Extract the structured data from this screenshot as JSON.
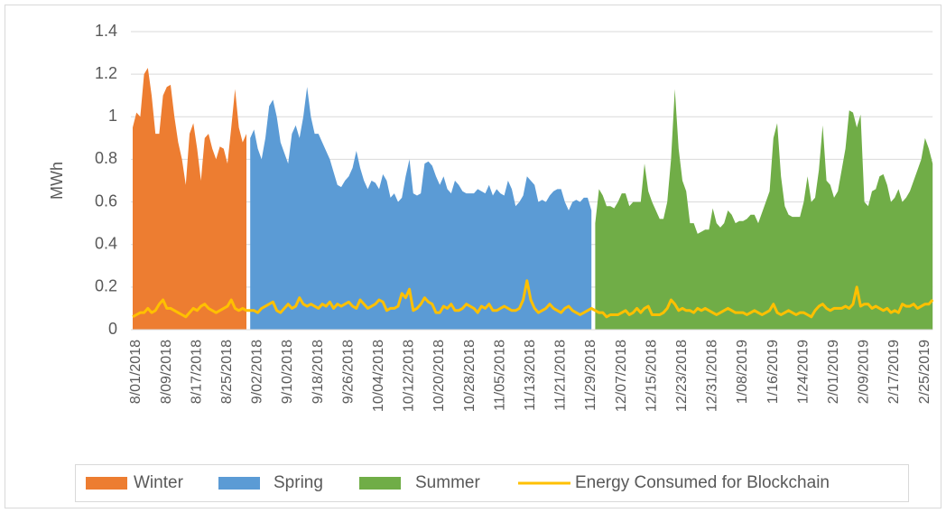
{
  "chart_data": {
    "type": "area",
    "ylabel": "MWh",
    "legend": "bottom",
    "grid": true,
    "ylim": [
      0,
      1.4
    ],
    "yticks": [
      0,
      0.2,
      0.4,
      0.6,
      0.8,
      1,
      1.2,
      1.4
    ],
    "categories": [
      "8/01/2018",
      null,
      null,
      null,
      null,
      null,
      null,
      null,
      "8/09/2018",
      null,
      null,
      null,
      null,
      null,
      null,
      null,
      "8/17/2018",
      null,
      null,
      null,
      null,
      null,
      null,
      null,
      "8/25/2018",
      null,
      null,
      null,
      null,
      null,
      null,
      null,
      "9/02/2018",
      null,
      null,
      null,
      null,
      null,
      null,
      null,
      "9/10/2018",
      null,
      null,
      null,
      null,
      null,
      null,
      null,
      "9/18/2018",
      null,
      null,
      null,
      null,
      null,
      null,
      null,
      "9/26/2018",
      null,
      null,
      null,
      null,
      null,
      null,
      null,
      "10/04/2018",
      null,
      null,
      null,
      null,
      null,
      null,
      null,
      "10/12/2018",
      null,
      null,
      null,
      null,
      null,
      null,
      null,
      "10/20/2018",
      null,
      null,
      null,
      null,
      null,
      null,
      null,
      "10/28/2018",
      null,
      null,
      null,
      null,
      null,
      null,
      null,
      "11/05/2018",
      null,
      null,
      null,
      null,
      null,
      null,
      null,
      "11/13/2018",
      null,
      null,
      null,
      null,
      null,
      null,
      null,
      "11/21/2018",
      null,
      null,
      null,
      null,
      null,
      null,
      null,
      "11/29/2018",
      null,
      null,
      null,
      null,
      null,
      null,
      null,
      "12/07/2018",
      null,
      null,
      null,
      null,
      null,
      null,
      null,
      "12/15/2018",
      null,
      null,
      null,
      null,
      null,
      null,
      null,
      "12/23/2018",
      null,
      null,
      null,
      null,
      null,
      null,
      null,
      "12/31/2018",
      null,
      null,
      null,
      null,
      null,
      null,
      null,
      "1/08/2019",
      null,
      null,
      null,
      null,
      null,
      null,
      null,
      "1/16/2019",
      null,
      null,
      null,
      null,
      null,
      null,
      null,
      "1/24/2019",
      null,
      null,
      null,
      null,
      null,
      null,
      null,
      "2/01/2019",
      null,
      null,
      null,
      null,
      null,
      null,
      null,
      "2/09/2019",
      null,
      null,
      null,
      null,
      null,
      null,
      null,
      "2/17/2019",
      null,
      null,
      null,
      null,
      null,
      null,
      null,
      "2/25/2019",
      null,
      null,
      null
    ],
    "series": [
      {
        "name": "Winter",
        "color": "#ed7d31",
        "kind": "area",
        "values": [
          0.95,
          1.02,
          1.0,
          1.2,
          1.23,
          1.1,
          0.92,
          0.92,
          1.1,
          1.14,
          1.15,
          1.0,
          0.88,
          0.8,
          0.68,
          0.92,
          0.97,
          0.85,
          0.7,
          0.9,
          0.92,
          0.85,
          0.8,
          0.86,
          0.85,
          0.78,
          0.95,
          1.13,
          0.95,
          0.88,
          0.92,
          null,
          null,
          null,
          null,
          null,
          null,
          null,
          null,
          null,
          null,
          null,
          null,
          null,
          null,
          null,
          null,
          null,
          null,
          null,
          null,
          null,
          null,
          null,
          null,
          null,
          null,
          null,
          null,
          null,
          null,
          null,
          null,
          null,
          null,
          null,
          null,
          null,
          null,
          null,
          null,
          null,
          null,
          null,
          null,
          null,
          null,
          null,
          null,
          null,
          null,
          null,
          null,
          null,
          null,
          null,
          null,
          null,
          null,
          null,
          null,
          null,
          null,
          null,
          null,
          null,
          null,
          null,
          null,
          null,
          null,
          null,
          null,
          null,
          null,
          null,
          null,
          null,
          null,
          null,
          null,
          null,
          null,
          null,
          null,
          null,
          null,
          null,
          null,
          null,
          null,
          null,
          null,
          null,
          null,
          null,
          null,
          null,
          null,
          null,
          null,
          null,
          null,
          null,
          null,
          null,
          null,
          null,
          null,
          null,
          null,
          null,
          null,
          null,
          null,
          null,
          null,
          null,
          null,
          null,
          null,
          null,
          null,
          null,
          null,
          null,
          null,
          null,
          null,
          null,
          null,
          null,
          null,
          null,
          null,
          null,
          null,
          null,
          null,
          null,
          null,
          null,
          null,
          null,
          null,
          null,
          null,
          null,
          null,
          null,
          null,
          null,
          null,
          null,
          null,
          null,
          null,
          null,
          null,
          null,
          null,
          null,
          null,
          null,
          null,
          null,
          null,
          null,
          null,
          null,
          null,
          null,
          null,
          null,
          null,
          null,
          null,
          null,
          null,
          null,
          null,
          null
        ]
      },
      {
        "name": "Spring",
        "color": "#5b9bd5",
        "kind": "area",
        "values": [
          null,
          null,
          null,
          null,
          null,
          null,
          null,
          null,
          null,
          null,
          null,
          null,
          null,
          null,
          null,
          null,
          null,
          null,
          null,
          null,
          null,
          null,
          null,
          null,
          null,
          null,
          null,
          null,
          null,
          null,
          null,
          0.9,
          0.94,
          0.85,
          0.8,
          0.9,
          1.05,
          1.08,
          1.0,
          0.88,
          0.83,
          0.78,
          0.92,
          0.96,
          0.9,
          1.0,
          1.14,
          1.0,
          0.92,
          0.92,
          0.88,
          0.84,
          0.8,
          0.74,
          0.68,
          0.67,
          0.7,
          0.72,
          0.76,
          0.84,
          0.76,
          0.7,
          0.66,
          0.7,
          0.69,
          0.66,
          0.73,
          0.7,
          0.62,
          0.64,
          0.6,
          0.62,
          0.72,
          0.8,
          0.64,
          0.63,
          0.64,
          0.78,
          0.79,
          0.77,
          0.72,
          0.68,
          0.72,
          0.66,
          0.64,
          0.7,
          0.68,
          0.65,
          0.64,
          0.64,
          0.64,
          0.66,
          0.65,
          0.64,
          0.68,
          0.63,
          0.66,
          0.64,
          0.63,
          0.7,
          0.66,
          0.58,
          0.6,
          0.63,
          0.72,
          0.7,
          0.68,
          0.6,
          0.61,
          0.6,
          0.63,
          0.65,
          0.66,
          0.66,
          0.6,
          0.56,
          0.6,
          0.61,
          0.6,
          0.62,
          0.62,
          0.56,
          null,
          null,
          null,
          null,
          null,
          null,
          null,
          null,
          null,
          null,
          null,
          null,
          null,
          null,
          null,
          null,
          null,
          null,
          null,
          null,
          null,
          null,
          null,
          null,
          null,
          null,
          null,
          null,
          null,
          null,
          null,
          null,
          null,
          null,
          null,
          null,
          null,
          null,
          null,
          null,
          null,
          null,
          null,
          null,
          null,
          null,
          null,
          null,
          null,
          null,
          null,
          null,
          null,
          null,
          null,
          null,
          null,
          null,
          null,
          null,
          null,
          null,
          null,
          null,
          null,
          null,
          null,
          null,
          null,
          null,
          null,
          null,
          null,
          null,
          null,
          null,
          null,
          null,
          null,
          null,
          null,
          null,
          null,
          null,
          null,
          null,
          null,
          null,
          null,
          null
        ]
      },
      {
        "name": "Summer",
        "color": "#70ad47",
        "kind": "area",
        "values": [
          null,
          null,
          null,
          null,
          null,
          null,
          null,
          null,
          null,
          null,
          null,
          null,
          null,
          null,
          null,
          null,
          null,
          null,
          null,
          null,
          null,
          null,
          null,
          null,
          null,
          null,
          null,
          null,
          null,
          null,
          null,
          null,
          null,
          null,
          null,
          null,
          null,
          null,
          null,
          null,
          null,
          null,
          null,
          null,
          null,
          null,
          null,
          null,
          null,
          null,
          null,
          null,
          null,
          null,
          null,
          null,
          null,
          null,
          null,
          null,
          null,
          null,
          null,
          null,
          null,
          null,
          null,
          null,
          null,
          null,
          null,
          null,
          null,
          null,
          null,
          null,
          null,
          null,
          null,
          null,
          null,
          null,
          null,
          null,
          null,
          null,
          null,
          null,
          null,
          null,
          null,
          null,
          null,
          null,
          null,
          null,
          null,
          null,
          null,
          null,
          null,
          null,
          null,
          null,
          null,
          null,
          null,
          null,
          null,
          null,
          null,
          null,
          null,
          null,
          null,
          null,
          null,
          null,
          null,
          null,
          null,
          null,
          0.5,
          0.66,
          0.63,
          0.58,
          0.58,
          0.57,
          0.6,
          0.64,
          0.64,
          0.58,
          0.6,
          0.6,
          0.6,
          0.78,
          0.65,
          0.6,
          0.56,
          0.52,
          0.52,
          0.6,
          0.8,
          1.13,
          0.85,
          0.7,
          0.65,
          0.5,
          0.5,
          0.45,
          0.46,
          0.47,
          0.47,
          0.57,
          0.5,
          0.48,
          0.5,
          0.56,
          0.54,
          0.5,
          0.51,
          0.51,
          0.52,
          0.54,
          0.54,
          0.5,
          0.55,
          0.6,
          0.65,
          0.9,
          0.97,
          0.72,
          0.58,
          0.54,
          0.53,
          0.53,
          0.53,
          0.6,
          0.72,
          0.6,
          0.62,
          0.75,
          0.96,
          0.7,
          0.68,
          0.62,
          0.65,
          0.75,
          0.85,
          1.03,
          1.02,
          0.95,
          1.01,
          0.6,
          0.58,
          0.65,
          0.66,
          0.72,
          0.73,
          0.68,
          0.6,
          0.62,
          0.66,
          0.6,
          0.62,
          0.65,
          0.7,
          0.75,
          0.8,
          0.9,
          0.85,
          0.78
        ]
      },
      {
        "name": "Energy Consumed for Blockchain",
        "color": "#ffc000",
        "kind": "line",
        "values": [
          0.06,
          0.07,
          0.08,
          0.08,
          0.1,
          0.08,
          0.09,
          0.12,
          0.14,
          0.1,
          0.1,
          0.09,
          0.08,
          0.07,
          0.06,
          0.08,
          0.1,
          0.09,
          0.11,
          0.12,
          0.1,
          0.09,
          0.08,
          0.09,
          0.1,
          0.11,
          0.14,
          0.1,
          0.09,
          0.1,
          0.09,
          0.09,
          0.09,
          0.08,
          0.1,
          0.11,
          0.12,
          0.13,
          0.09,
          0.08,
          0.1,
          0.12,
          0.1,
          0.11,
          0.15,
          0.12,
          0.11,
          0.12,
          0.11,
          0.1,
          0.12,
          0.11,
          0.13,
          0.1,
          0.12,
          0.11,
          0.12,
          0.13,
          0.11,
          0.1,
          0.14,
          0.12,
          0.1,
          0.11,
          0.12,
          0.14,
          0.13,
          0.09,
          0.1,
          0.1,
          0.11,
          0.17,
          0.15,
          0.19,
          0.09,
          0.1,
          0.12,
          0.15,
          0.13,
          0.12,
          0.08,
          0.08,
          0.11,
          0.1,
          0.12,
          0.09,
          0.09,
          0.1,
          0.12,
          0.11,
          0.1,
          0.08,
          0.11,
          0.1,
          0.12,
          0.09,
          0.09,
          0.1,
          0.11,
          0.1,
          0.09,
          0.09,
          0.1,
          0.14,
          0.23,
          0.14,
          0.1,
          0.08,
          0.09,
          0.1,
          0.12,
          0.1,
          0.09,
          0.08,
          0.1,
          0.11,
          0.09,
          0.08,
          0.07,
          0.08,
          0.09,
          0.1,
          0.09,
          0.08,
          0.08,
          0.06,
          0.07,
          0.07,
          0.07,
          0.08,
          0.09,
          0.07,
          0.08,
          0.1,
          0.08,
          0.1,
          0.11,
          0.07,
          0.07,
          0.07,
          0.08,
          0.1,
          0.14,
          0.12,
          0.09,
          0.1,
          0.09,
          0.09,
          0.08,
          0.1,
          0.09,
          0.1,
          0.09,
          0.08,
          0.07,
          0.08,
          0.09,
          0.1,
          0.09,
          0.08,
          0.08,
          0.08,
          0.07,
          0.08,
          0.09,
          0.08,
          0.07,
          0.08,
          0.09,
          0.12,
          0.08,
          0.07,
          0.08,
          0.09,
          0.08,
          0.07,
          0.08,
          0.08,
          0.07,
          0.06,
          0.09,
          0.11,
          0.12,
          0.1,
          0.09,
          0.1,
          0.1,
          0.1,
          0.11,
          0.1,
          0.12,
          0.2,
          0.11,
          0.12,
          0.12,
          0.1,
          0.11,
          0.1,
          0.09,
          0.1,
          0.08,
          0.09,
          0.08,
          0.12,
          0.11,
          0.11,
          0.12,
          0.1,
          0.11,
          0.12,
          0.12,
          0.14
        ]
      }
    ]
  }
}
